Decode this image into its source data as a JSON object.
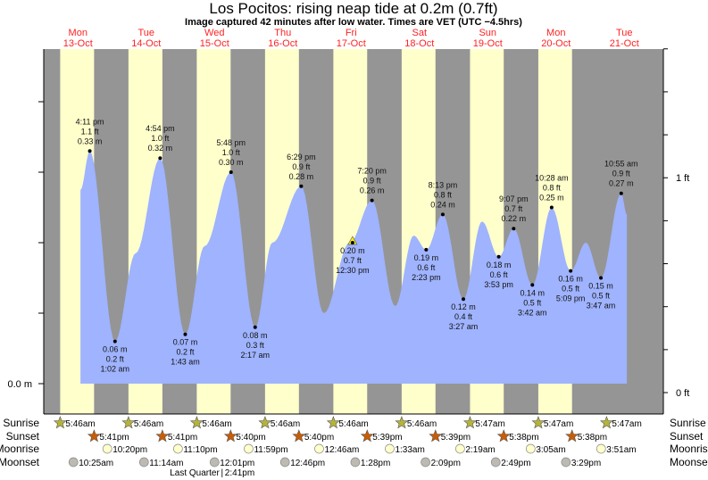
{
  "chart_data": {
    "type": "area",
    "title": "Los Pocitos: rising  neap tide at 0.2m (0.7ft)",
    "subtitle": "Image captured 42 minutes after low water. Times are VET (UTC −4.5hrs)",
    "days": [
      {
        "dow": "Mon",
        "date": "13-Oct"
      },
      {
        "dow": "Tue",
        "date": "14-Oct"
      },
      {
        "dow": "Wed",
        "date": "15-Oct"
      },
      {
        "dow": "Thu",
        "date": "16-Oct"
      },
      {
        "dow": "Fri",
        "date": "17-Oct"
      },
      {
        "dow": "Sat",
        "date": "18-Oct"
      },
      {
        "dow": "Sun",
        "date": "19-Oct"
      },
      {
        "dow": "Mon",
        "date": "20-Oct"
      },
      {
        "dow": "Tue",
        "date": "21-Oct"
      }
    ],
    "x_unit": "hours since Mon 13-Oct 00:00",
    "x_range_hours": [
      0,
      217.7
    ],
    "y_range_m": [
      -0.043,
      0.475
    ],
    "left_axis": {
      "label": "0.0 m",
      "ticks_m": [
        0,
        0.1,
        0.2,
        0.3,
        0.4
      ]
    },
    "right_axis": {
      "labels": [
        {
          "text": "1 ft",
          "ft": 1
        },
        {
          "text": "0 ft",
          "ft": 0
        }
      ],
      "ticks_ft": [
        0,
        0.2,
        0.4,
        0.6,
        0.8,
        1.0,
        1.2,
        1.4,
        1.6
      ],
      "zero_ft_offset_m": -0.0127
    },
    "tide_curve_m": [
      [
        12.9,
        0.275
      ],
      [
        16.18,
        0.33
      ],
      [
        25.03,
        0.06
      ],
      [
        32.3,
        0.185
      ],
      [
        40.9,
        0.32
      ],
      [
        49.72,
        0.07
      ],
      [
        56.5,
        0.195
      ],
      [
        65.8,
        0.3
      ],
      [
        74.28,
        0.08
      ],
      [
        80.3,
        0.2
      ],
      [
        90.48,
        0.28
      ],
      [
        98.4,
        0.1
      ],
      [
        107.5,
        0.2
      ],
      [
        115.33,
        0.26
      ],
      [
        123.5,
        0.11
      ],
      [
        130.0,
        0.21
      ],
      [
        134.38,
        0.19
      ],
      [
        140.22,
        0.24
      ],
      [
        147.45,
        0.12
      ],
      [
        154.0,
        0.23
      ],
      [
        159.88,
        0.18
      ],
      [
        165.12,
        0.22
      ],
      [
        171.7,
        0.14
      ],
      [
        178.47,
        0.25
      ],
      [
        185.15,
        0.16
      ],
      [
        190.5,
        0.2
      ],
      [
        195.78,
        0.15
      ],
      [
        202.92,
        0.27
      ],
      [
        204.9,
        0.24
      ]
    ],
    "extremes": [
      {
        "type": "high",
        "h": 16.18,
        "m": 0.33,
        "time": "4:11 pm",
        "ft_label": "1.1 ft",
        "m_label": "0.33 m"
      },
      {
        "type": "low",
        "h": 25.03,
        "m": 0.06,
        "time": "1:02 am",
        "ft_label": "0.2 ft",
        "m_label": "0.06 m"
      },
      {
        "type": "high",
        "h": 40.9,
        "m": 0.32,
        "time": "4:54 pm",
        "ft_label": "1.0 ft",
        "m_label": "0.32 m"
      },
      {
        "type": "low",
        "h": 49.72,
        "m": 0.07,
        "time": "1:43 am",
        "ft_label": "0.2 ft",
        "m_label": "0.07 m"
      },
      {
        "type": "high",
        "h": 65.8,
        "m": 0.3,
        "time": "5:48 pm",
        "ft_label": "1.0 ft",
        "m_label": "0.30 m"
      },
      {
        "type": "low",
        "h": 74.28,
        "m": 0.08,
        "time": "2:17 am",
        "ft_label": "0.3 ft",
        "m_label": "0.08 m"
      },
      {
        "type": "high",
        "h": 90.48,
        "m": 0.28,
        "time": "6:29 pm",
        "ft_label": "0.9 ft",
        "m_label": "0.28 m"
      },
      {
        "type": "now",
        "h": 108.5,
        "m": 0.2,
        "time": "12:30 pm",
        "ft_label": "0.7 ft",
        "m_label": "0.20 m"
      },
      {
        "type": "high",
        "h": 115.33,
        "m": 0.26,
        "time": "7:20 pm",
        "ft_label": "0.9 ft",
        "m_label": "0.26 m"
      },
      {
        "type": "low",
        "h": 134.38,
        "m": 0.19,
        "time": "2:23 pm",
        "ft_label": "0.6 ft",
        "m_label": "0.19 m"
      },
      {
        "type": "high",
        "h": 140.22,
        "m": 0.24,
        "time": "8:13 pm",
        "ft_label": "0.8 ft",
        "m_label": "0.24 m"
      },
      {
        "type": "low",
        "h": 147.45,
        "m": 0.12,
        "time": "3:27 am",
        "ft_label": "0.4 ft",
        "m_label": "0.12 m"
      },
      {
        "type": "low",
        "h": 159.88,
        "m": 0.18,
        "time": "3:53 pm",
        "ft_label": "0.6 ft",
        "m_label": "0.18 m"
      },
      {
        "type": "high",
        "h": 165.12,
        "m": 0.22,
        "time": "9:07 pm",
        "ft_label": "0.7 ft",
        "m_label": "0.22 m"
      },
      {
        "type": "low",
        "h": 171.7,
        "m": 0.14,
        "time": "3:42 am",
        "ft_label": "0.5 ft",
        "m_label": "0.14 m"
      },
      {
        "type": "high",
        "h": 178.47,
        "m": 0.25,
        "time": "10:28 am",
        "ft_label": "0.8 ft",
        "m_label": "0.25 m"
      },
      {
        "type": "low",
        "h": 185.15,
        "m": 0.16,
        "time": "5:09 pm",
        "ft_label": "0.5 ft",
        "m_label": "0.16 m"
      },
      {
        "type": "low",
        "h": 195.78,
        "m": 0.15,
        "time": "3:47 am",
        "ft_label": "0.5 ft",
        "m_label": "0.15 m"
      },
      {
        "type": "high",
        "h": 202.92,
        "m": 0.27,
        "time": "10:55 am",
        "ft_label": "0.9 ft",
        "m_label": "0.27 m"
      }
    ],
    "rows": [
      {
        "label": "Sunrise",
        "marker": "star-sunrise",
        "events": [
          {
            "day": 0,
            "time": "5:46am"
          },
          {
            "day": 1,
            "time": "5:46am"
          },
          {
            "day": 2,
            "time": "5:46am"
          },
          {
            "day": 3,
            "time": "5:46am"
          },
          {
            "day": 4,
            "time": "5:46am"
          },
          {
            "day": 5,
            "time": "5:46am"
          },
          {
            "day": 6,
            "time": "5:47am"
          },
          {
            "day": 7,
            "time": "5:47am"
          },
          {
            "day": 8,
            "time": "5:47am"
          }
        ]
      },
      {
        "label": "Sunset",
        "marker": "star-sunset",
        "events": [
          {
            "day": 0,
            "time": "5:41pm"
          },
          {
            "day": 1,
            "time": "5:41pm"
          },
          {
            "day": 2,
            "time": "5:40pm"
          },
          {
            "day": 3,
            "time": "5:40pm"
          },
          {
            "day": 4,
            "time": "5:39pm"
          },
          {
            "day": 5,
            "time": "5:39pm"
          },
          {
            "day": 6,
            "time": "5:38pm"
          },
          {
            "day": 7,
            "time": "5:38pm"
          }
        ]
      },
      {
        "label": "Moonrise",
        "marker": "moon-rise",
        "events": [
          {
            "day": 0,
            "time": "10:20pm"
          },
          {
            "day": 1,
            "time": "11:10pm"
          },
          {
            "day": 2,
            "time": "11:59pm"
          },
          {
            "day": 4,
            "time": "12:46am"
          },
          {
            "day": 5,
            "time": "1:33am"
          },
          {
            "day": 6,
            "time": "2:19am"
          },
          {
            "day": 7,
            "time": "3:05am"
          },
          {
            "day": 8,
            "time": "3:51am"
          }
        ]
      },
      {
        "label": "Moonset",
        "marker": "moon-set",
        "events": [
          {
            "day": 0,
            "time": "10:25am"
          },
          {
            "day": 1,
            "time": "11:14am"
          },
          {
            "day": 2,
            "time": "12:01pm"
          },
          {
            "day": 3,
            "time": "12:46pm"
          },
          {
            "day": 4,
            "time": "1:28pm"
          },
          {
            "day": 5,
            "time": "2:09pm"
          },
          {
            "day": 6,
            "time": "2:49pm"
          },
          {
            "day": 7,
            "time": "3:29pm"
          }
        ]
      }
    ],
    "moon_phase": {
      "label": "Last Quarter",
      "separator": "|",
      "time": "2:41pm",
      "day": 2
    },
    "colors": {
      "day": "#ffffcc",
      "night": "#959595",
      "water": "#9fb3fe",
      "date": "#ff2222",
      "sunrise": "#b5b43a",
      "sunset": "#cc5c00",
      "moonrise": "#ffffcc",
      "moonset": "#bdbab2"
    }
  }
}
